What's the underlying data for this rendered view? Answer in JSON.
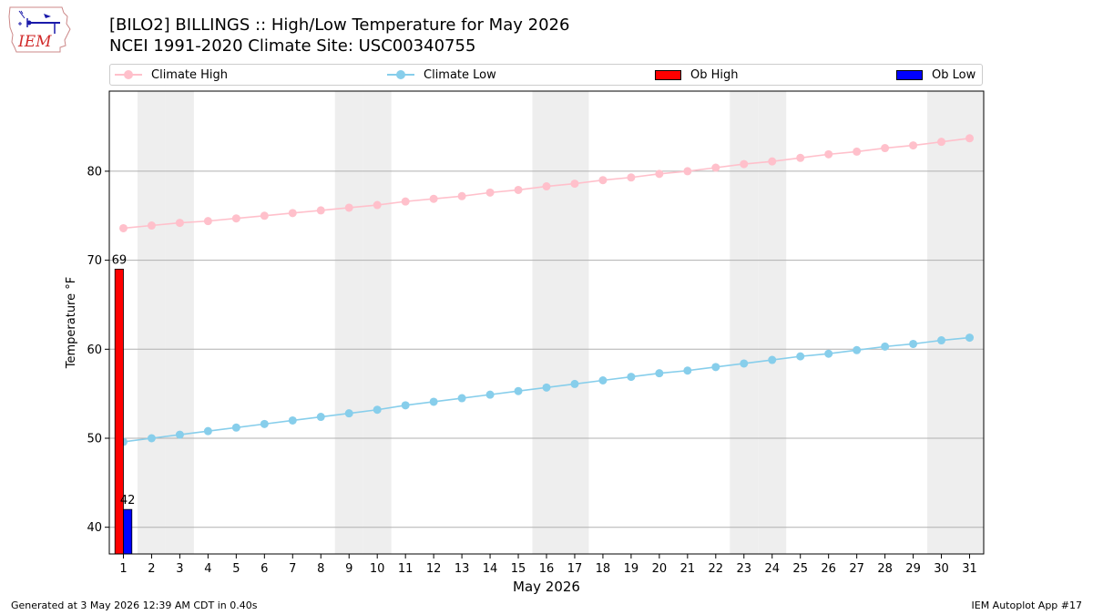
{
  "header": {
    "title_line1": "[BILO2] BILLINGS :: High/Low Temperature for May 2026",
    "title_line2": "NCEI 1991-2020 Climate Site: USC00340755"
  },
  "logo": {
    "text": "IEM"
  },
  "legend": {
    "climate_high": "Climate High",
    "climate_low": "Climate Low",
    "ob_high": "Ob High",
    "ob_low": "Ob Low"
  },
  "footer": {
    "generated": "Generated at 3 May 2026 12:39 AM CDT in 0.40s",
    "app": "IEM Autoplot App #17"
  },
  "colors": {
    "climate_high": "#ffc0cb",
    "climate_low": "#87ceeb",
    "ob_high": "#ff0000",
    "ob_low": "#0000ff",
    "weekend_shade": "#eeeeee",
    "grid": "#b0b0b0"
  },
  "chart_data": {
    "type": "bar",
    "xlabel": "May 2026",
    "ylabel": "Temperature °F",
    "xlim": [
      0.5,
      31.5
    ],
    "ylim": [
      37,
      89
    ],
    "x_ticks": [
      1,
      2,
      3,
      4,
      5,
      6,
      7,
      8,
      9,
      10,
      11,
      12,
      13,
      14,
      15,
      16,
      17,
      18,
      19,
      20,
      21,
      22,
      23,
      24,
      25,
      26,
      27,
      28,
      29,
      30,
      31
    ],
    "y_ticks": [
      40,
      50,
      60,
      70,
      80
    ],
    "grid": "horizontal",
    "legend_position": "top",
    "weekend_days": [
      2,
      3,
      9,
      10,
      16,
      17,
      23,
      24,
      30,
      31
    ],
    "series": [
      {
        "name": "Climate High",
        "kind": "line",
        "x": [
          1,
          2,
          3,
          4,
          5,
          6,
          7,
          8,
          9,
          10,
          11,
          12,
          13,
          14,
          15,
          16,
          17,
          18,
          19,
          20,
          21,
          22,
          23,
          24,
          25,
          26,
          27,
          28,
          29,
          30,
          31
        ],
        "values": [
          73.6,
          73.9,
          74.2,
          74.4,
          74.7,
          75.0,
          75.3,
          75.6,
          75.9,
          76.2,
          76.6,
          76.9,
          77.2,
          77.6,
          77.9,
          78.3,
          78.6,
          79.0,
          79.3,
          79.7,
          80.0,
          80.4,
          80.8,
          81.1,
          81.5,
          81.9,
          82.2,
          82.6,
          82.9,
          83.3,
          83.7
        ]
      },
      {
        "name": "Climate Low",
        "kind": "line",
        "x": [
          1,
          2,
          3,
          4,
          5,
          6,
          7,
          8,
          9,
          10,
          11,
          12,
          13,
          14,
          15,
          16,
          17,
          18,
          19,
          20,
          21,
          22,
          23,
          24,
          25,
          26,
          27,
          28,
          29,
          30,
          31
        ],
        "values": [
          49.6,
          50.0,
          50.4,
          50.8,
          51.2,
          51.6,
          52.0,
          52.4,
          52.8,
          53.2,
          53.7,
          54.1,
          54.5,
          54.9,
          55.3,
          55.7,
          56.1,
          56.5,
          56.9,
          57.3,
          57.6,
          58.0,
          58.4,
          58.8,
          59.2,
          59.5,
          59.9,
          60.3,
          60.6,
          61.0,
          61.3
        ]
      },
      {
        "name": "Ob High",
        "kind": "bar",
        "x": [
          1
        ],
        "values": [
          69
        ],
        "labels": [
          "69"
        ]
      },
      {
        "name": "Ob Low",
        "kind": "bar",
        "x": [
          1
        ],
        "values": [
          42
        ],
        "labels": [
          "42"
        ]
      }
    ]
  }
}
